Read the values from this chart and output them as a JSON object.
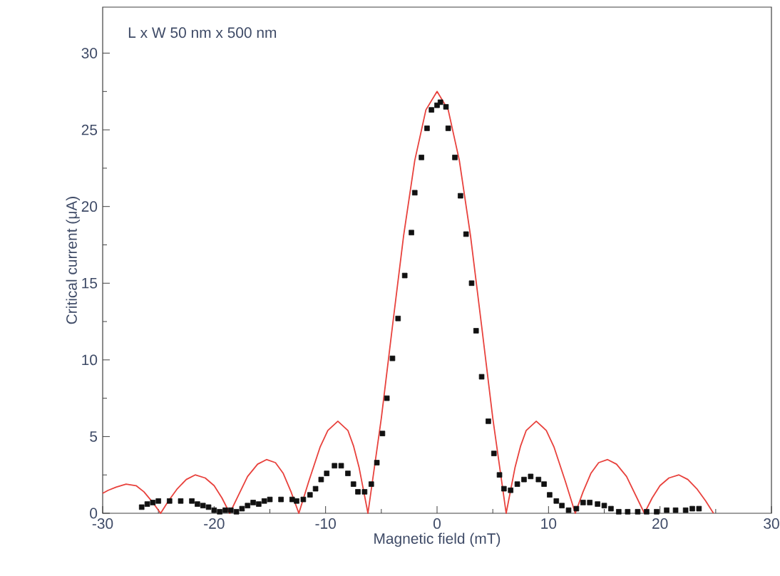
{
  "chart_data": {
    "type": "scatter",
    "xlabel": "Magnetic field (mT)",
    "ylabel": "Critical current (μA)",
    "annotations": [
      "L x W 50 nm x 500 nm"
    ],
    "xlim": [
      -30,
      30
    ],
    "ylim": [
      0,
      33
    ],
    "xticks": [
      -30,
      -20,
      -10,
      0,
      10,
      20,
      30
    ],
    "yticks": [
      0,
      5,
      10,
      15,
      20,
      25,
      30
    ],
    "series": [
      {
        "type": "line",
        "color": "#e8413c",
        "marker": "none",
        "line_style": "solid",
        "x": [
          -30,
          -29.5,
          -28.8,
          -27.9,
          -27,
          -26.3,
          -25.5,
          -24.8,
          -24.1,
          -23.3,
          -22.5,
          -21.7,
          -20.8,
          -20,
          -19.3,
          -18.6,
          -17.8,
          -17,
          -16.1,
          -15.3,
          -14.5,
          -13.8,
          -13.1,
          -12.4,
          -11.5,
          -10.5,
          -9.8,
          -8.9,
          -8,
          -7.5,
          -7,
          -6.2,
          -5,
          -4,
          -3,
          -2,
          -1,
          0,
          1,
          2,
          3,
          4,
          5,
          6.2,
          7,
          7.5,
          8,
          8.9,
          9.8,
          10.5,
          11.5,
          12.4,
          13.1,
          13.8,
          14.5,
          15.3,
          16.1,
          17,
          17.8,
          18.6,
          19.3,
          20,
          20.8,
          21.7,
          22.5,
          23.3,
          24.1,
          24.8
        ],
        "values": [
          1.3,
          1.5,
          1.7,
          1.9,
          1.8,
          1.4,
          0.7,
          0,
          0.8,
          1.6,
          2.2,
          2.5,
          2.3,
          1.8,
          1.0,
          0,
          1.2,
          2.4,
          3.2,
          3.5,
          3.3,
          2.6,
          1.4,
          0,
          2.1,
          4.3,
          5.4,
          6.0,
          5.4,
          4.4,
          3.0,
          0,
          6.2,
          12.2,
          18.1,
          23.0,
          26.3,
          27.5,
          26.3,
          23.0,
          18.1,
          12.2,
          6.2,
          0,
          3.0,
          4.4,
          5.4,
          6.0,
          5.4,
          4.3,
          2.1,
          0,
          1.4,
          2.6,
          3.3,
          3.5,
          3.2,
          2.4,
          1.2,
          0,
          1.0,
          1.8,
          2.3,
          2.5,
          2.2,
          1.6,
          0.8,
          0
        ]
      },
      {
        "color": "#111111",
        "marker": "square",
        "x": [
          -26.5,
          -26,
          -25.5,
          -25,
          -24,
          -23,
          -22,
          -21.5,
          -21,
          -20.5,
          -20,
          -19.5,
          -19,
          -18.5,
          -18,
          -17.5,
          -17,
          -16.5,
          -16,
          -15.5,
          -15,
          -14,
          -13,
          -12.6,
          -12,
          -11.4,
          -10.9,
          -10.4,
          -9.9,
          -9.2,
          -8.6,
          -8,
          -7.5,
          -7.1,
          -6.5,
          -5.9,
          -5.4,
          -4.9,
          -4.5,
          -4,
          -3.5,
          -2.9,
          -2.3,
          -2,
          -1.4,
          -0.9,
          -0.5,
          0,
          0.3,
          0.8,
          1,
          1.6,
          2.1,
          2.6,
          3.1,
          3.5,
          4,
          4.6,
          5.1,
          5.6,
          6,
          6.6,
          7.2,
          7.8,
          8.4,
          9.1,
          9.6,
          10.1,
          10.7,
          11.2,
          11.8,
          12.5,
          13.1,
          13.7,
          14.4,
          15,
          15.6,
          16.3,
          17.1,
          18,
          18.8,
          19.7,
          20.6,
          21.4,
          22.3,
          22.9,
          23.5
        ],
        "values": [
          0.4,
          0.6,
          0.7,
          0.8,
          0.8,
          0.8,
          0.8,
          0.6,
          0.5,
          0.4,
          0.2,
          0.1,
          0.2,
          0.2,
          0.1,
          0.3,
          0.5,
          0.7,
          0.6,
          0.8,
          0.9,
          0.9,
          0.9,
          0.8,
          0.9,
          1.2,
          1.6,
          2.2,
          2.6,
          3.1,
          3.1,
          2.6,
          1.9,
          1.4,
          1.4,
          1.9,
          3.3,
          5.2,
          7.5,
          10.1,
          12.7,
          15.5,
          18.3,
          20.9,
          23.2,
          25.1,
          26.3,
          26.6,
          26.8,
          26.5,
          25.1,
          23.2,
          20.7,
          18.2,
          15.0,
          11.9,
          8.9,
          6.0,
          3.9,
          2.5,
          1.6,
          1.5,
          1.9,
          2.2,
          2.4,
          2.2,
          1.9,
          1.2,
          0.8,
          0.5,
          0.2,
          0.3,
          0.7,
          0.7,
          0.6,
          0.5,
          0.3,
          0.1,
          0.1,
          0.1,
          0.1,
          0.1,
          0.2,
          0.2,
          0.2,
          0.3,
          0.3
        ]
      }
    ]
  }
}
